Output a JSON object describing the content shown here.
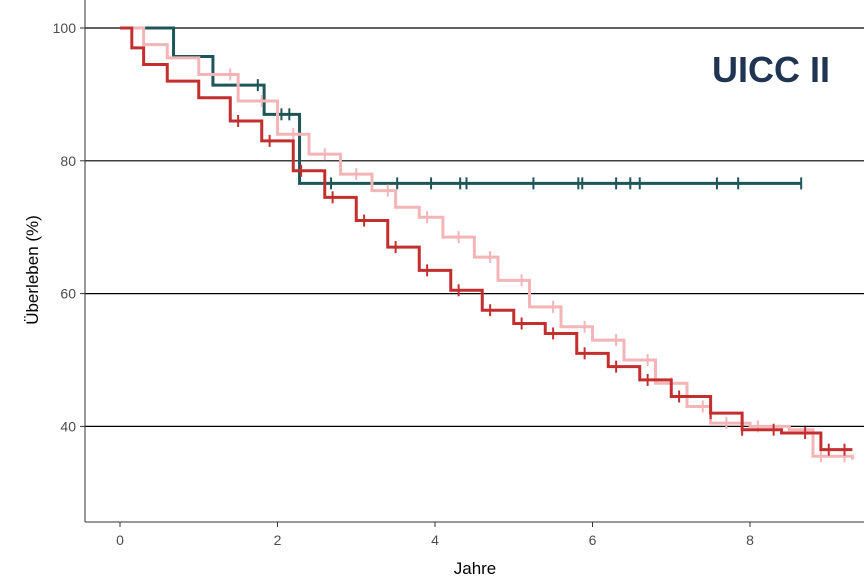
{
  "chart_data": {
    "type": "line",
    "title": "",
    "annotation": "UICC II",
    "xlabel": "Jahre",
    "ylabel": "Überleben (%)",
    "xlim": [
      0,
      9.3
    ],
    "ylim": [
      25,
      100
    ],
    "x_ticks": [
      0,
      2,
      4,
      6,
      8
    ],
    "y_ticks": [
      40,
      60,
      80,
      100
    ],
    "grid": "horizontal major",
    "legend": "none",
    "series": [
      {
        "color": "#1e5658",
        "step": true,
        "points": [
          [
            0,
            100
          ],
          [
            0.68,
            100
          ],
          [
            0.68,
            95.7
          ],
          [
            1.18,
            95.7
          ],
          [
            1.18,
            91.4
          ],
          [
            1.83,
            91.4
          ],
          [
            1.83,
            87.0
          ],
          [
            2.28,
            87.0
          ],
          [
            2.28,
            76.6
          ],
          [
            8.65,
            76.6
          ]
        ],
        "censor_x": [
          1.75,
          2.05,
          2.15,
          2.68,
          3.52,
          3.95,
          4.32,
          4.4,
          5.25,
          5.82,
          5.87,
          6.3,
          6.48,
          6.6,
          7.58,
          7.85,
          8.65
        ]
      },
      {
        "color": "#f3b5b8",
        "step": true,
        "points": [
          [
            0,
            100
          ],
          [
            0.3,
            97.5
          ],
          [
            0.6,
            95.5
          ],
          [
            1.0,
            93
          ],
          [
            1.5,
            89
          ],
          [
            2.0,
            84
          ],
          [
            2.4,
            81
          ],
          [
            2.8,
            78
          ],
          [
            3.2,
            75.5
          ],
          [
            3.5,
            73
          ],
          [
            3.8,
            71.5
          ],
          [
            4.1,
            68.5
          ],
          [
            4.5,
            65.5
          ],
          [
            4.8,
            62
          ],
          [
            5.2,
            58
          ],
          [
            5.6,
            55
          ],
          [
            6.0,
            53
          ],
          [
            6.4,
            50
          ],
          [
            6.8,
            46.5
          ],
          [
            7.2,
            43
          ],
          [
            7.5,
            40.5
          ],
          [
            8.0,
            40
          ],
          [
            8.5,
            39.5
          ],
          [
            8.8,
            35.5
          ],
          [
            9.3,
            35
          ]
        ],
        "censor_x": [
          1.4,
          1.8,
          2.2,
          2.6,
          3.0,
          3.4,
          3.9,
          4.3,
          4.7,
          5.1,
          5.5,
          5.9,
          6.3,
          6.7,
          7.0,
          7.4,
          7.7,
          8.1,
          8.9,
          9.2
        ]
      },
      {
        "color": "#c32f2f",
        "step": true,
        "points": [
          [
            0,
            100
          ],
          [
            0.15,
            97
          ],
          [
            0.3,
            94.5
          ],
          [
            0.6,
            92
          ],
          [
            1.0,
            89.5
          ],
          [
            1.4,
            86
          ],
          [
            1.8,
            83
          ],
          [
            2.2,
            78.5
          ],
          [
            2.6,
            74.5
          ],
          [
            3.0,
            71
          ],
          [
            3.4,
            67
          ],
          [
            3.8,
            63.5
          ],
          [
            4.2,
            60.5
          ],
          [
            4.6,
            57.5
          ],
          [
            5.0,
            55.5
          ],
          [
            5.4,
            54
          ],
          [
            5.8,
            51
          ],
          [
            6.2,
            49
          ],
          [
            6.6,
            47
          ],
          [
            7.0,
            44.5
          ],
          [
            7.5,
            42
          ],
          [
            7.9,
            39.5
          ],
          [
            8.4,
            39
          ],
          [
            8.8,
            39
          ],
          [
            8.9,
            36.5
          ],
          [
            9.3,
            36.5
          ]
        ],
        "censor_x": [
          1.5,
          1.9,
          2.3,
          2.7,
          3.1,
          3.5,
          3.9,
          4.3,
          4.7,
          5.1,
          5.5,
          5.9,
          6.3,
          6.7,
          7.1,
          7.5,
          7.9,
          8.3,
          8.7,
          9.0,
          9.2
        ]
      }
    ]
  }
}
